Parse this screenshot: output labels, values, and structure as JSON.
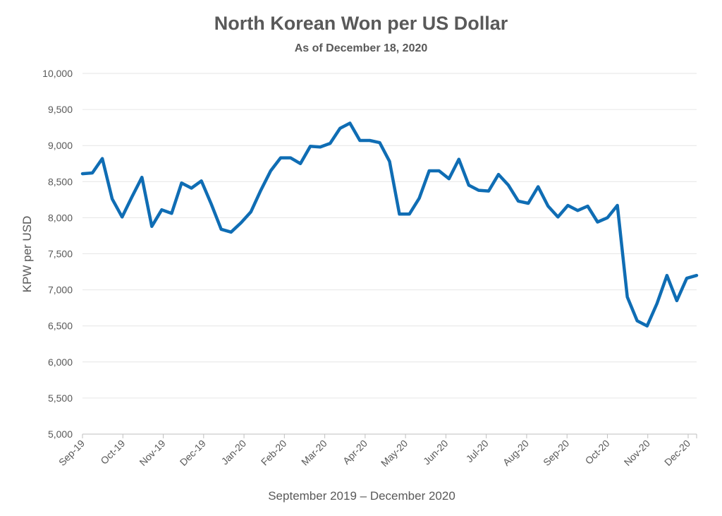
{
  "chart_data": {
    "type": "line",
    "title": "North Korean Won per US Dollar",
    "subtitle": "As of December 18, 2020",
    "xlabel": "September 2019 – December 2020",
    "ylabel": "KPW per USD",
    "ylim": [
      5000,
      10000
    ],
    "y_ticks": [
      5000,
      5500,
      6000,
      6500,
      7000,
      7500,
      8000,
      8500,
      9000,
      9500,
      10000
    ],
    "y_tick_labels": [
      "5,000",
      "5,500",
      "6,000",
      "6,500",
      "7,000",
      "7,500",
      "8,000",
      "8,500",
      "9,000",
      "9,500",
      "10,000"
    ],
    "x_tick_labels": [
      "Sep-19",
      "Oct-19",
      "Nov-19",
      "Dec-19",
      "Jan-20",
      "Feb-20",
      "Mar-20",
      "Apr-20",
      "May-20",
      "Jun-20",
      "Jul-20",
      "Aug-20",
      "Sep-20",
      "Oct-20",
      "Nov-20",
      "Dec-20"
    ],
    "grid": true,
    "line_color": "#0f6db4",
    "series": [
      {
        "values": [
          8610,
          8620,
          8820,
          8260,
          8010,
          8290,
          8560,
          7880,
          8110,
          8060,
          8480,
          8410,
          8510,
          8190,
          7840,
          7800,
          7930,
          8080,
          8380,
          8650,
          8830,
          8830,
          8750,
          8990,
          8980,
          9030,
          9240,
          9310,
          9070,
          9070,
          9040,
          8780,
          8050,
          8050,
          8270,
          8650,
          8650,
          8540,
          8810,
          8450,
          8380,
          8370,
          8600,
          8450,
          8230,
          8200,
          8430,
          8160,
          8010,
          8170,
          8100,
          8160,
          7940,
          8000,
          8170,
          6900,
          6570,
          6500,
          6810,
          7200,
          6850,
          7160,
          7200
        ]
      }
    ]
  }
}
